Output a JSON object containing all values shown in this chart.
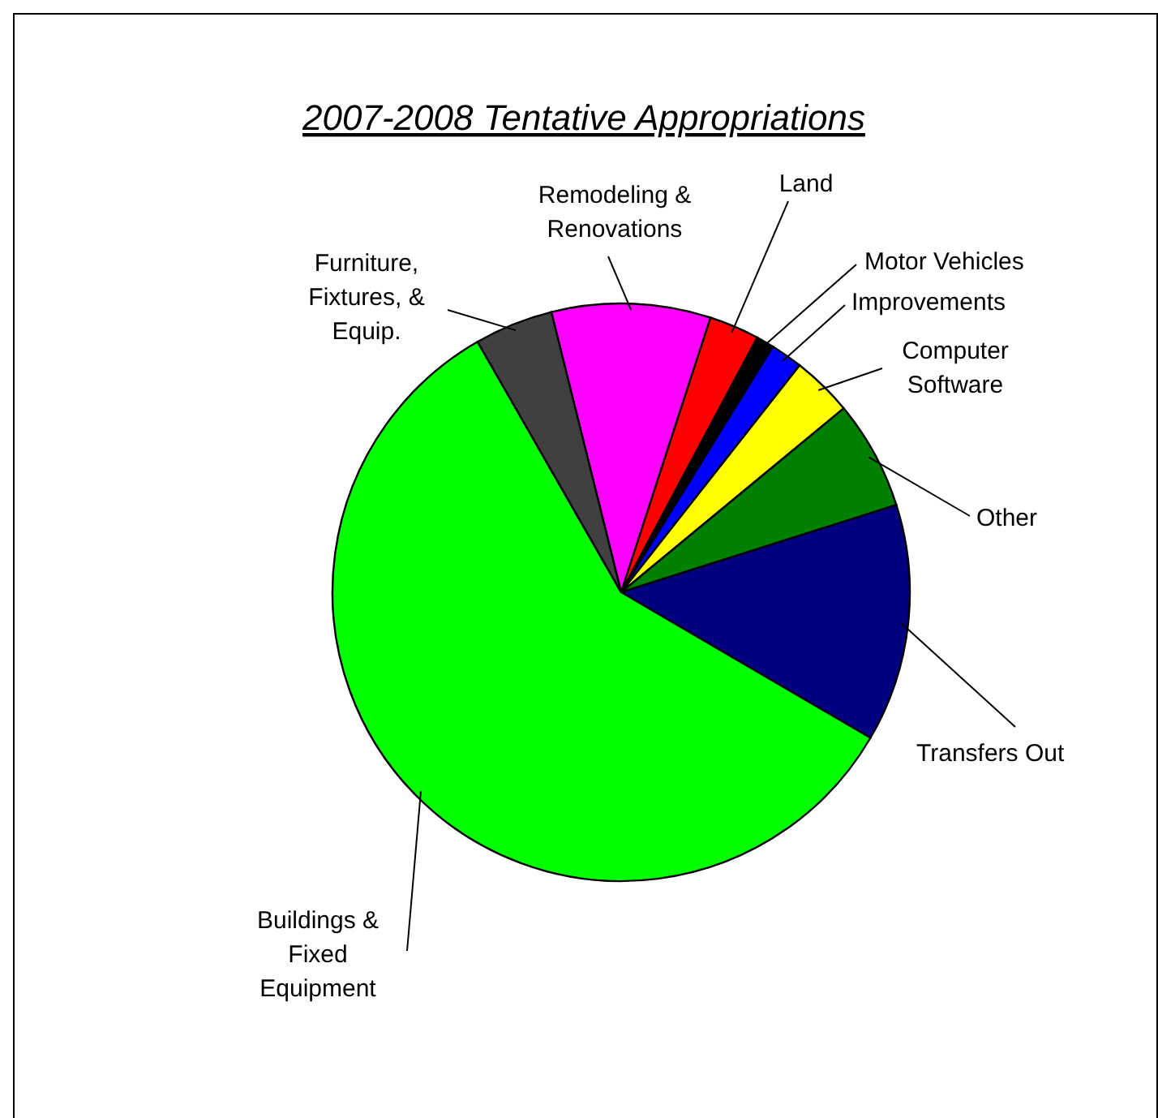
{
  "chart_data": {
    "type": "pie",
    "title": "2007-2008 Tentative Appropriations",
    "categories": [
      "Remodeling & Renovations",
      "Land",
      "Motor Vehicles",
      "Improvements",
      "Computer Software",
      "Other",
      "Transfers Out",
      "Buildings & Fixed Equipment",
      "Furniture, Fixtures, & Equip."
    ],
    "values": [
      8.9,
      2.8,
      1.0,
      1.8,
      3.4,
      6.1,
      13.3,
      58.3,
      4.4
    ],
    "colors": [
      "#ff00ff",
      "#ff0000",
      "#000000",
      "#0000ff",
      "#ffff00",
      "#008000",
      "#000080",
      "#00ff00",
      "#404040"
    ]
  }
}
